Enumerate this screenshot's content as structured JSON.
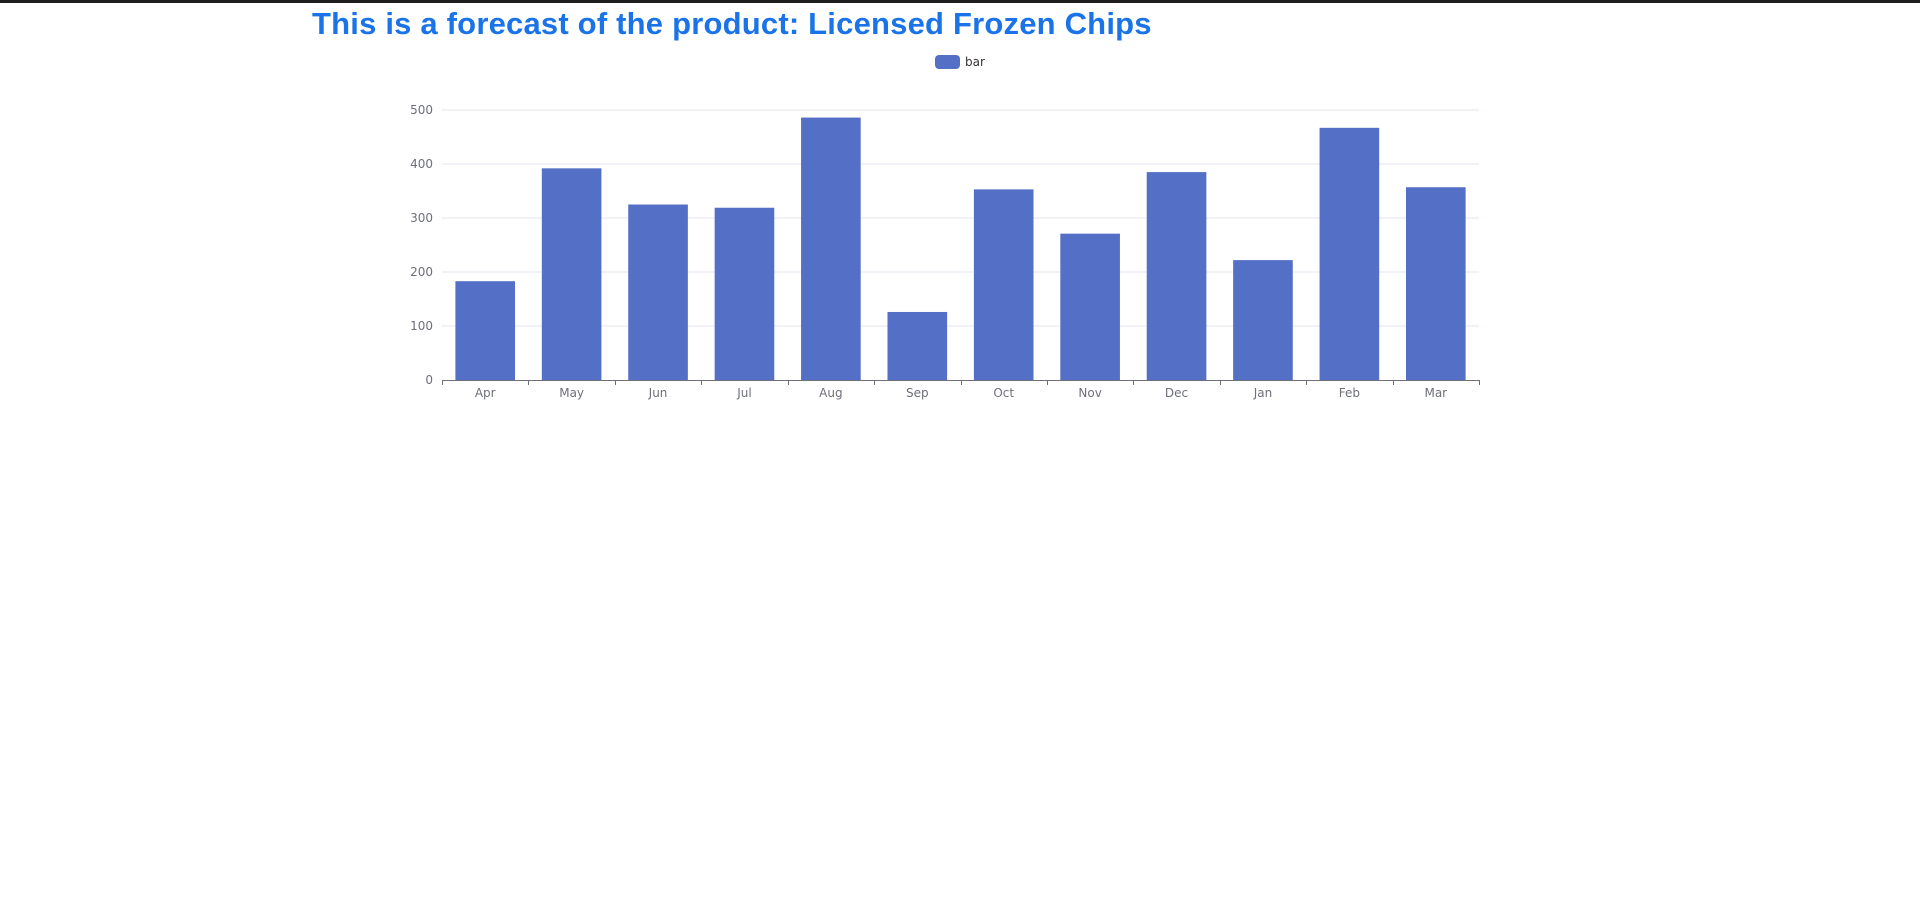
{
  "page": {
    "title": "This is a forecast of the product: Licensed Frozen Chips",
    "title_color": "#1a73e8"
  },
  "chart_data": {
    "type": "bar",
    "title": "",
    "xlabel": "",
    "ylabel": "",
    "categories": [
      "Apr",
      "May",
      "Jun",
      "Jul",
      "Aug",
      "Sep",
      "Oct",
      "Nov",
      "Dec",
      "Jan",
      "Feb",
      "Mar"
    ],
    "series": [
      {
        "name": "bar",
        "color": "#5470c6",
        "values": [
          183,
          392,
          325,
          319,
          486,
          126,
          353,
          271,
          385,
          222,
          467,
          357
        ]
      }
    ],
    "ylim": [
      0,
      500
    ],
    "yticks": [
      0,
      100,
      200,
      300,
      400,
      500
    ],
    "grid": true,
    "legend_position": "top-center",
    "colors": {
      "grid": "#e0e6f1",
      "axis": "#6e7079"
    }
  }
}
